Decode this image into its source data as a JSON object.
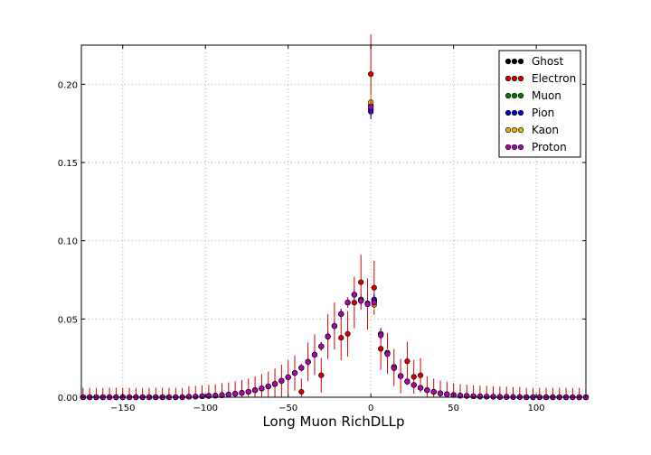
{
  "chart_data": {
    "type": "scatter",
    "title": "",
    "xlabel": "Long Muon RichDLLp",
    "ylabel": "",
    "xlim": [
      -175,
      130
    ],
    "ylim": [
      0,
      0.225
    ],
    "xticks": [
      -150,
      -100,
      -50,
      0,
      50,
      100
    ],
    "xtick_labels": [
      "−150",
      "−100",
      "−50",
      "0",
      "50",
      "100"
    ],
    "yticks": [
      0.0,
      0.05,
      0.1,
      0.15,
      0.2
    ],
    "ytick_labels": [
      "0.00",
      "0.05",
      "0.10",
      "0.15",
      "0.20"
    ],
    "grid": true,
    "legend_position": "top-right",
    "x": [
      -174,
      -170,
      -166,
      -162,
      -158,
      -154,
      -150,
      -146,
      -142,
      -138,
      -134,
      -130,
      -126,
      -122,
      -118,
      -114,
      -110,
      -106,
      -102,
      -98,
      -94,
      -90,
      -86,
      -82,
      -78,
      -74,
      -70,
      -66,
      -62,
      -58,
      -54,
      -50,
      -46,
      -42,
      -38,
      -34,
      -30,
      -26,
      -22,
      -18,
      -14,
      -10,
      -6,
      -2,
      0,
      2,
      6,
      10,
      14,
      18,
      22,
      26,
      30,
      34,
      38,
      42,
      46,
      50,
      54,
      58,
      62,
      66,
      70,
      74,
      78,
      82,
      86,
      90,
      94,
      98,
      102,
      106,
      110,
      114,
      118,
      122,
      126,
      130
    ],
    "series": [
      {
        "name": "Ghost",
        "color": "#000000",
        "values": [
          0,
          0,
          0,
          0,
          0,
          0,
          0,
          0,
          0,
          0,
          0,
          0,
          0,
          0,
          0,
          0,
          0.0003,
          0.0004,
          0.0006,
          0.0008,
          0.001,
          0.0013,
          0.0017,
          0.0022,
          0.0028,
          0.0035,
          0.0045,
          0.0056,
          0.0069,
          0.0085,
          0.0105,
          0.0128,
          0.0155,
          0.0188,
          0.0226,
          0.0272,
          0.0325,
          0.0388,
          0.0455,
          0.0532,
          0.0605,
          0.0655,
          0.062,
          0.0595,
          0.184,
          0.062,
          0.04,
          0.028,
          0.019,
          0.0135,
          0.01,
          0.0078,
          0.006,
          0.0045,
          0.0034,
          0.0025,
          0.0019,
          0.0014,
          0.001,
          0.0008,
          0.0006,
          0.0005,
          0.0004,
          0.0003,
          0.0002,
          0.0002,
          0.0001,
          0.0001,
          0,
          0,
          0,
          0,
          0,
          0,
          0,
          0,
          0,
          0
        ]
      },
      {
        "name": "Electron",
        "color": "#d40000",
        "values": [
          0,
          0,
          0,
          0,
          0,
          0,
          0,
          0,
          0,
          0,
          0,
          0,
          0,
          0,
          0,
          0,
          0.0003,
          0.0004,
          0.0006,
          0.0008,
          0.001,
          0.0013,
          0.0017,
          0.0022,
          0.0028,
          0.0035,
          0.0045,
          0.0056,
          0.0069,
          0.0085,
          0.0105,
          0.0128,
          0.0155,
          0.0035,
          0.0226,
          0.0272,
          0.014,
          0.0388,
          0.0455,
          0.038,
          0.0405,
          0.0605,
          0.0735,
          0.0595,
          0.2065,
          0.07,
          0.031,
          0.028,
          0.019,
          0.0135,
          0.023,
          0.013,
          0.014,
          0.0045,
          0.0034,
          0.0025,
          0.0019,
          0.0014,
          0.001,
          0.0008,
          0.0006,
          0.0005,
          0.0004,
          0.0003,
          0.0002,
          0.0002,
          0.0001,
          0.0001,
          0,
          0,
          0,
          0,
          0,
          0,
          0,
          0,
          0,
          0
        ]
      },
      {
        "name": "Muon",
        "color": "#007a00",
        "values": [
          0,
          0,
          0,
          0,
          0,
          0,
          0,
          0,
          0,
          0,
          0,
          0,
          0,
          0,
          0,
          0,
          0.0003,
          0.0004,
          0.0006,
          0.0008,
          0.001,
          0.0013,
          0.0017,
          0.0022,
          0.0028,
          0.0035,
          0.0045,
          0.0056,
          0.0069,
          0.0085,
          0.0105,
          0.0128,
          0.0155,
          0.0188,
          0.0226,
          0.0272,
          0.0325,
          0.0388,
          0.0455,
          0.0532,
          0.0605,
          0.0655,
          0.062,
          0.0595,
          0.1865,
          0.061,
          0.0405,
          0.0285,
          0.0195,
          0.0135,
          0.0102,
          0.0078,
          0.006,
          0.0045,
          0.0034,
          0.0025,
          0.0019,
          0.0014,
          0.001,
          0.0008,
          0.0006,
          0.0005,
          0.0004,
          0.0003,
          0.0002,
          0.0002,
          0.0001,
          0.0001,
          0,
          0,
          0,
          0,
          0,
          0,
          0,
          0,
          0,
          0
        ]
      },
      {
        "name": "Pion",
        "color": "#0000c8",
        "values": [
          0,
          0,
          0,
          0,
          0,
          0,
          0,
          0,
          0,
          0,
          0,
          0,
          0,
          0,
          0,
          0,
          0.0003,
          0.0004,
          0.0006,
          0.0008,
          0.001,
          0.0013,
          0.0017,
          0.0022,
          0.0028,
          0.0035,
          0.0045,
          0.0056,
          0.0069,
          0.0085,
          0.0105,
          0.0128,
          0.0155,
          0.0188,
          0.0226,
          0.0272,
          0.0325,
          0.0388,
          0.0455,
          0.0532,
          0.0605,
          0.0655,
          0.0625,
          0.06,
          0.1825,
          0.0625,
          0.0405,
          0.028,
          0.019,
          0.0135,
          0.01,
          0.0078,
          0.006,
          0.0045,
          0.0034,
          0.0025,
          0.0019,
          0.0014,
          0.001,
          0.0008,
          0.0006,
          0.0005,
          0.0004,
          0.0003,
          0.0002,
          0.0002,
          0.0001,
          0.0001,
          0,
          0,
          0,
          0,
          0,
          0,
          0,
          0,
          0,
          0
        ]
      },
      {
        "name": "Kaon",
        "color": "#e3b200",
        "values": [
          0,
          0,
          0,
          0,
          0,
          0,
          0,
          0,
          0,
          0,
          0,
          0,
          0,
          0,
          0,
          0,
          0.0003,
          0.0004,
          0.0006,
          0.0008,
          0.001,
          0.0013,
          0.0017,
          0.0022,
          0.0028,
          0.0035,
          0.0045,
          0.0056,
          0.0069,
          0.0085,
          0.0105,
          0.0128,
          0.0155,
          0.0188,
          0.0226,
          0.0272,
          0.0325,
          0.0388,
          0.0455,
          0.0532,
          0.0605,
          0.0655,
          0.062,
          0.0595,
          0.1885,
          0.059,
          0.04,
          0.028,
          0.019,
          0.0135,
          0.01,
          0.0078,
          0.006,
          0.0045,
          0.0034,
          0.0025,
          0.0019,
          0.0014,
          0.001,
          0.0008,
          0.0006,
          0.0005,
          0.0004,
          0.0003,
          0.0002,
          0.0002,
          0.0001,
          0.0001,
          0,
          0,
          0,
          0,
          0,
          0,
          0,
          0,
          0,
          0
        ]
      },
      {
        "name": "Proton",
        "color": "#b000b0",
        "values": [
          0,
          0,
          0,
          0,
          0,
          0,
          0,
          0,
          0,
          0,
          0,
          0,
          0,
          0,
          0,
          0,
          0.0003,
          0.0004,
          0.0006,
          0.0008,
          0.001,
          0.0013,
          0.0017,
          0.0022,
          0.0028,
          0.0035,
          0.0045,
          0.0056,
          0.0069,
          0.0085,
          0.0105,
          0.0128,
          0.0155,
          0.0188,
          0.0226,
          0.0272,
          0.0325,
          0.0388,
          0.0455,
          0.0532,
          0.0605,
          0.0655,
          0.0615,
          0.0595,
          0.1855,
          0.0605,
          0.0395,
          0.0275,
          0.0185,
          0.0135,
          0.01,
          0.0078,
          0.006,
          0.0045,
          0.0034,
          0.0025,
          0.0019,
          0.0014,
          0.001,
          0.0008,
          0.0006,
          0.0005,
          0.0004,
          0.0003,
          0.0002,
          0.0002,
          0.0001,
          0.0001,
          0,
          0,
          0,
          0,
          0,
          0,
          0,
          0,
          0,
          0
        ]
      }
    ]
  }
}
